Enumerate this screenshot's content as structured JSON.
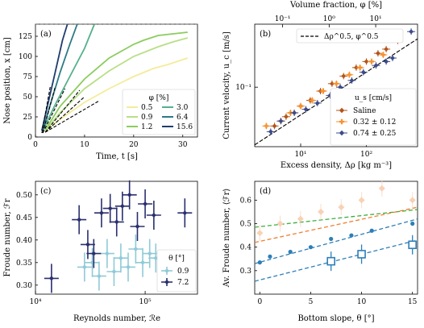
{
  "figure": {
    "panels": [
      "(a)",
      "(b)",
      "(c)",
      "(d)"
    ]
  },
  "chart_data": [
    {
      "panel": "(a)",
      "type": "line",
      "xlabel": "Time, t [s]",
      "ylabel": "Nose position, x [cm]",
      "xlim": [
        0,
        33
      ],
      "ylim": [
        0,
        140
      ],
      "xticks": [
        0,
        10,
        20,
        30
      ],
      "yticks": [
        0,
        25,
        50,
        75,
        100,
        125
      ],
      "legend_title": "φ [%]",
      "legend_position": "lower-right",
      "series": [
        {
          "name": "0.5",
          "color": "#f4ec9a",
          "x": [
            2,
            5,
            10,
            15,
            20,
            24,
            27,
            30,
            31
          ],
          "y": [
            7,
            22,
            43,
            60,
            75,
            85,
            90,
            96,
            98
          ]
        },
        {
          "name": "0.9",
          "color": "#b8df86",
          "x": [
            2,
            5,
            10,
            15,
            20,
            25,
            28,
            31
          ],
          "y": [
            8,
            30,
            60,
            82,
            100,
            112,
            118,
            123
          ]
        },
        {
          "name": "1.2",
          "color": "#8ccc5e",
          "x": [
            2,
            5,
            10,
            15,
            20,
            22,
            25,
            31
          ],
          "y": [
            9,
            38,
            72,
            98,
            115,
            120,
            126,
            130
          ]
        },
        {
          "name": "3.0",
          "color": "#55b08c",
          "x": [
            1.5,
            4,
            7,
            10,
            12
          ],
          "y": [
            8,
            40,
            75,
            110,
            140
          ]
        },
        {
          "name": "6.4",
          "color": "#2a7a85",
          "x": [
            1.5,
            3,
            5,
            7,
            8.5
          ],
          "y": [
            8,
            40,
            80,
            115,
            140
          ]
        },
        {
          "name": "15.6",
          "color": "#1f3d6e",
          "x": [
            1.3,
            2.5,
            4,
            5.5,
            6.5
          ],
          "y": [
            8,
            40,
            80,
            120,
            140
          ]
        }
      ],
      "fits": [
        {
          "x": [
            2,
            13
          ],
          "y": [
            6,
            45
          ]
        },
        {
          "x": [
            2,
            10
          ],
          "y": [
            6,
            50
          ]
        },
        {
          "x": [
            2,
            9
          ],
          "y": [
            6,
            58
          ]
        },
        {
          "x": [
            1.5,
            6
          ],
          "y": [
            5,
            60
          ]
        },
        {
          "x": [
            1.5,
            4
          ],
          "y": [
            5,
            62
          ]
        },
        {
          "x": [
            1.3,
            3
          ],
          "y": [
            5,
            62
          ]
        }
      ]
    },
    {
      "panel": "(b)",
      "type": "scatter",
      "xlabel": "Excess density, Δρ [kg m⁻³]",
      "ylabel": "Current velocity, u_c [m/s]",
      "top_xlabel": "Volume fraction, φ [%]",
      "xscale": "log",
      "yscale": "log",
      "xlim": [
        2,
        600
      ],
      "ylim": [
        0.02,
        0.55
      ],
      "xticks": [
        10,
        100
      ],
      "xtick_labels": [
        "10¹",
        "10²"
      ],
      "yticks": [
        0.1
      ],
      "ytick_labels": [
        "10⁻¹"
      ],
      "top_xticks": [
        0.1,
        1,
        10
      ],
      "top_xtick_labels": [
        "10⁻¹",
        "10⁰",
        "10¹"
      ],
      "fit_label": "Δρ^0.5, φ^0.5",
      "legend_title": "u_s [cm/s]",
      "legend_position": "lower-right",
      "series": [
        {
          "name": "Saline",
          "color": "#b4541a",
          "marker": "diamond",
          "x": [
            4,
            6,
            8,
            10,
            14,
            20,
            30,
            45,
            70,
            100,
            150,
            200,
            300
          ],
          "y": [
            0.035,
            0.045,
            0.05,
            0.06,
            0.07,
            0.09,
            0.11,
            0.135,
            0.17,
            0.2,
            0.25,
            0.28,
            0.35
          ]
        },
        {
          "name": "0.32 ± 0.12",
          "color": "#f5922f",
          "marker": "plus",
          "x": [
            3,
            5,
            7,
            10,
            15,
            22,
            35,
            55,
            80,
            120,
            180
          ],
          "y": [
            0.035,
            0.04,
            0.05,
            0.06,
            0.07,
            0.09,
            0.11,
            0.14,
            0.17,
            0.2,
            0.24
          ]
        },
        {
          "name": "0.74 ± 0.25",
          "color": "#3b4b8c",
          "marker": "diamond",
          "x": [
            3.5,
            5,
            8,
            12,
            18,
            28,
            40,
            60,
            90,
            140,
            200,
            250,
            480
          ],
          "y": [
            0.03,
            0.04,
            0.05,
            0.055,
            0.065,
            0.08,
            0.1,
            0.12,
            0.15,
            0.18,
            0.2,
            0.22,
            0.45
          ]
        }
      ],
      "fit": {
        "x": [
          2,
          600
        ],
        "y": [
          0.021,
          0.37
        ]
      }
    },
    {
      "panel": "(c)",
      "type": "scatter",
      "xlabel": "Reynolds number, ℛe",
      "ylabel": "Froude number, ℱr",
      "xscale": "log",
      "xlim": [
        10000,
        300000
      ],
      "ylim": [
        0.28,
        0.53
      ],
      "xticks": [
        10000,
        100000
      ],
      "xtick_labels": [
        "10⁴",
        "10⁵"
      ],
      "yticks": [
        0.3,
        0.35,
        0.4,
        0.45,
        0.5
      ],
      "legend_title": "θ [°]",
      "legend_position": "lower-right",
      "series": [
        {
          "name": "0.9",
          "color": "#8fcad8",
          "marker": "diamond",
          "x": [
            28000,
            33000,
            38000,
            45000,
            52000,
            60000,
            70000,
            82000,
            95000,
            110000,
            125000
          ],
          "y": [
            0.34,
            0.35,
            0.32,
            0.37,
            0.33,
            0.36,
            0.34,
            0.38,
            0.35,
            0.37,
            0.36
          ]
        },
        {
          "name": "7.2",
          "color": "#2a2f6e",
          "marker": "diamond",
          "x": [
            14000,
            25000,
            30000,
            34000,
            40000,
            48000,
            55000,
            62000,
            72000,
            85000,
            100000,
            120000,
            230000
          ],
          "y": [
            0.315,
            0.445,
            0.39,
            0.37,
            0.46,
            0.47,
            0.44,
            0.475,
            0.5,
            0.43,
            0.48,
            0.455,
            0.46
          ]
        }
      ]
    },
    {
      "panel": "(d)",
      "type": "scatter",
      "xlabel": "Bottom slope, θ [°]",
      "ylabel": "Av. Froude number, ⟨ℱr⟩",
      "xlim": [
        -0.5,
        15.5
      ],
      "ylim": [
        0.2,
        0.68
      ],
      "xticks": [
        0,
        5,
        10,
        15
      ],
      "yticks": [
        0.3,
        0.4,
        0.5,
        0.6
      ],
      "series": [
        {
          "name": "light peach",
          "color": "#f8d2b6",
          "marker": "diamond",
          "x": [
            0,
            2,
            4,
            6,
            8,
            10,
            12,
            15
          ],
          "y": [
            0.46,
            0.5,
            0.52,
            0.55,
            0.57,
            0.6,
            0.65,
            0.6
          ]
        },
        {
          "name": "blue points",
          "color": "#2d7fb8",
          "marker": "dot",
          "x": [
            0,
            1,
            3,
            5,
            7,
            9,
            11,
            15
          ],
          "y": [
            0.335,
            0.36,
            0.38,
            0.4,
            0.435,
            0.45,
            0.47,
            0.5
          ]
        },
        {
          "name": "squares",
          "color": "#2d7fb8",
          "marker": "square-open",
          "x": [
            7,
            10,
            15
          ],
          "y": [
            0.34,
            0.37,
            0.41
          ]
        }
      ],
      "fits": [
        {
          "color": "#3cae3c",
          "x": [
            -0.5,
            15.5
          ],
          "y": [
            0.485,
            0.56
          ]
        },
        {
          "color": "#f08030",
          "x": [
            -0.5,
            15.5
          ],
          "y": [
            0.42,
            0.57
          ]
        },
        {
          "color": "#2d7fb8",
          "x": [
            -0.5,
            15.5
          ],
          "y": [
            0.33,
            0.52
          ]
        },
        {
          "color": "#2d7fb8",
          "x": [
            -0.5,
            15.5
          ],
          "y": [
            0.255,
            0.43
          ]
        }
      ]
    }
  ]
}
